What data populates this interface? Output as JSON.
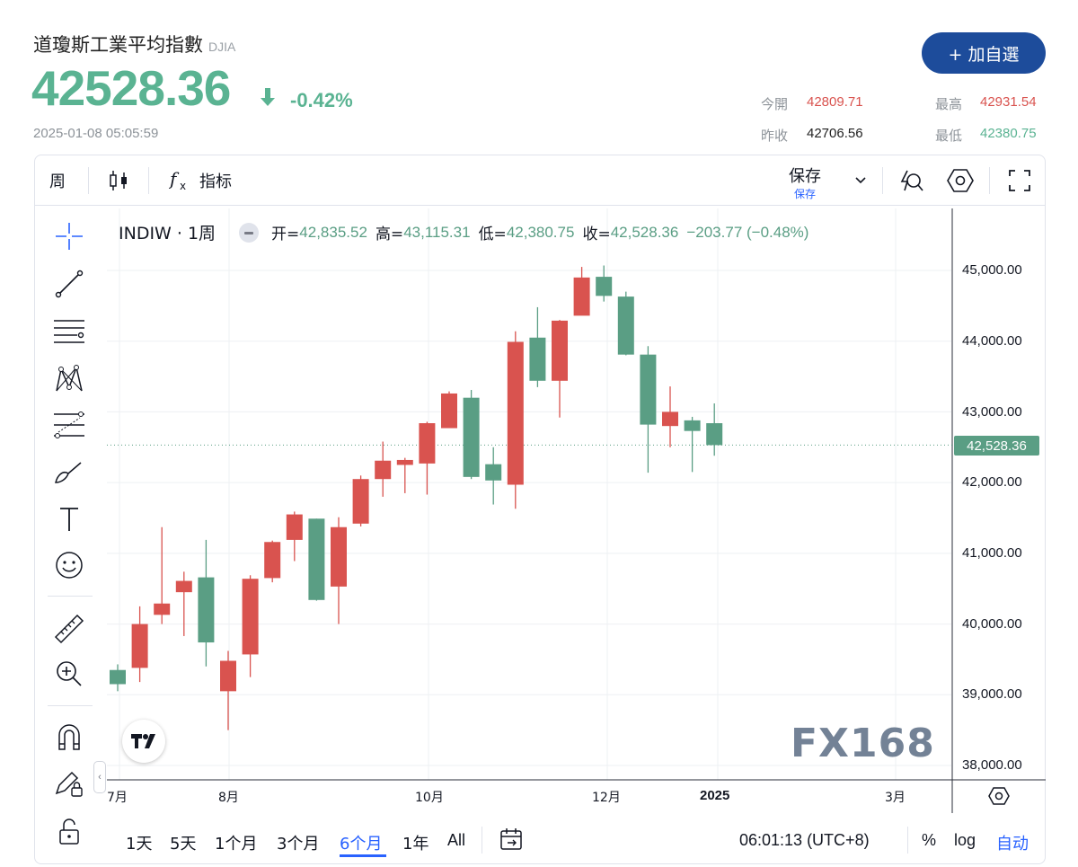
{
  "header": {
    "title": "道瓊斯工業平均指數",
    "code": "DJIA",
    "price": "42528.36",
    "change_pct": "-0.42%",
    "timestamp": "2025-01-08 05:05:59",
    "add_button": "+ 加自選",
    "stats": {
      "open_label": "今開",
      "open": "42809.71",
      "high_label": "最高",
      "high": "42931.54",
      "prev_label": "昨收",
      "prev": "42706.56",
      "low_label": "最低",
      "low": "42380.75"
    }
  },
  "toolbar": {
    "interval": "周",
    "indicators": "指标",
    "save_label": "保存",
    "save_sub": "保存"
  },
  "legend": {
    "symbol": "INDIW · 1周",
    "open_key": "开=",
    "open": "42,835.52",
    "high_key": "高=",
    "high": "43,115.31",
    "low_key": "低=",
    "low": "42,380.75",
    "close_key": "收=",
    "close": "42,528.36",
    "change": "−203.77 (−0.48%)"
  },
  "price_scale": {
    "labels": [
      "45,000.00",
      "44,000.00",
      "43,000.00",
      "42,000.00",
      "41,000.00",
      "40,000.00",
      "39,000.00",
      "38,000.00"
    ],
    "current": "42,528.36"
  },
  "time_axis": [
    "7月",
    "8月",
    "10月",
    "12月",
    "2025",
    "3月"
  ],
  "ranges": [
    "1天",
    "5天",
    "1个月",
    "3个月",
    "6个月",
    "1年",
    "All"
  ],
  "active_range": "6个月",
  "bottom_right": {
    "clock": "06:01:13 (UTC+8)",
    "percent": "%",
    "log": "log",
    "auto": "自动"
  },
  "watermark": "FX168",
  "colors": {
    "up": "#d9534f",
    "down": "#5a9e84",
    "accent": "#2962ff",
    "button": "#1d4c9b"
  },
  "chart_data": {
    "type": "candlestick",
    "ylim": [
      37800,
      45500
    ],
    "candles": [
      {
        "o": 39350,
        "h": 39430,
        "l": 39050,
        "c": 39150
      },
      {
        "o": 39380,
        "h": 40250,
        "l": 39180,
        "c": 40000
      },
      {
        "o": 40130,
        "h": 41370,
        "l": 40000,
        "c": 40290
      },
      {
        "o": 40450,
        "h": 40740,
        "l": 39830,
        "c": 40610
      },
      {
        "o": 40660,
        "h": 41190,
        "l": 39400,
        "c": 39740
      },
      {
        "o": 39050,
        "h": 39620,
        "l": 38500,
        "c": 39480
      },
      {
        "o": 39570,
        "h": 40690,
        "l": 39250,
        "c": 40640
      },
      {
        "o": 40650,
        "h": 41180,
        "l": 40590,
        "c": 41160
      },
      {
        "o": 41190,
        "h": 41590,
        "l": 40890,
        "c": 41550
      },
      {
        "o": 41490,
        "h": 41490,
        "l": 40330,
        "c": 40340
      },
      {
        "o": 40530,
        "h": 41510,
        "l": 40000,
        "c": 41370
      },
      {
        "o": 41420,
        "h": 42100,
        "l": 41380,
        "c": 42050
      },
      {
        "o": 42050,
        "h": 42580,
        "l": 41800,
        "c": 42310
      },
      {
        "o": 42250,
        "h": 42350,
        "l": 41850,
        "c": 42320
      },
      {
        "o": 42270,
        "h": 42860,
        "l": 41830,
        "c": 42840
      },
      {
        "o": 42770,
        "h": 43290,
        "l": 42780,
        "c": 43260
      },
      {
        "o": 43200,
        "h": 43310,
        "l": 42050,
        "c": 42080
      },
      {
        "o": 42260,
        "h": 42500,
        "l": 41690,
        "c": 42030
      },
      {
        "o": 41970,
        "h": 44140,
        "l": 41630,
        "c": 43990
      },
      {
        "o": 44050,
        "h": 44480,
        "l": 43350,
        "c": 43440
      },
      {
        "o": 43440,
        "h": 44300,
        "l": 42920,
        "c": 44290
      },
      {
        "o": 44360,
        "h": 45050,
        "l": 44370,
        "c": 44900
      },
      {
        "o": 44910,
        "h": 45070,
        "l": 44560,
        "c": 44640
      },
      {
        "o": 44630,
        "h": 44700,
        "l": 43800,
        "c": 43810
      },
      {
        "o": 43810,
        "h": 43930,
        "l": 42140,
        "c": 42820
      },
      {
        "o": 42800,
        "h": 43360,
        "l": 42500,
        "c": 43000
      },
      {
        "o": 42880,
        "h": 42930,
        "l": 42150,
        "c": 42730
      },
      {
        "o": 42840,
        "h": 43120,
        "l": 42380,
        "c": 42530
      }
    ]
  }
}
